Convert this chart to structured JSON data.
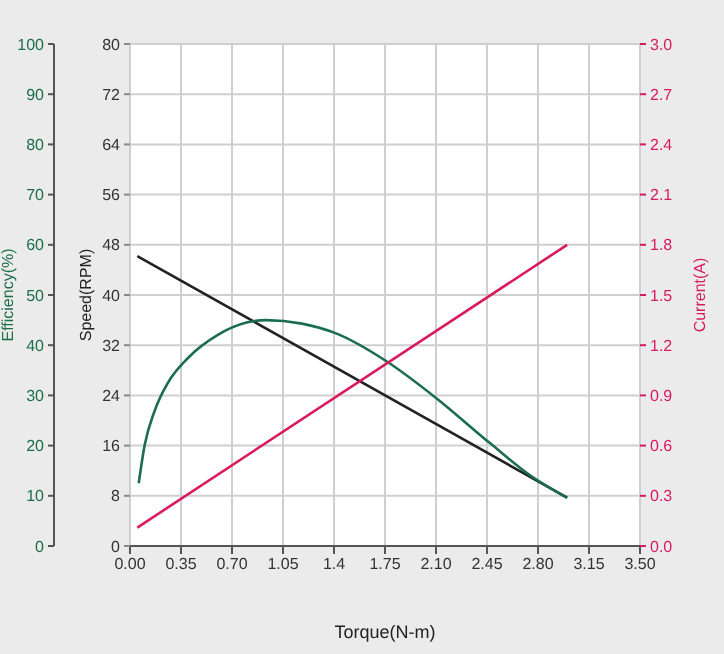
{
  "chart_data": {
    "type": "line",
    "xlabel": "Torque(N-m)",
    "ylabel": "Speed(RPM)",
    "y2label": "Current(A)",
    "y3label": "Efficiency(%)",
    "xlim": [
      0,
      3.5
    ],
    "xticks": [
      {
        "value": 0,
        "label": "0.00"
      },
      0.35,
      {
        "value": 0.7,
        "label": "0.70"
      },
      1.05,
      1.4,
      1.75,
      {
        "value": 2.1,
        "label": "2.10"
      },
      2.45,
      {
        "value": 2.8,
        "label": "2.80"
      },
      3.15,
      {
        "value": 3.5,
        "label": "3.50"
      }
    ],
    "ylim": [
      0,
      80
    ],
    "yticks": [
      0,
      8,
      16,
      24,
      32,
      40,
      48,
      56,
      64,
      72,
      80
    ],
    "y3lim": [
      0,
      100
    ],
    "y3ticks": [
      0,
      10,
      20,
      30,
      40,
      50,
      60,
      70,
      80,
      90,
      100
    ],
    "y2lim": [
      0,
      3
    ],
    "y2ticks": [
      {
        "value": 0,
        "label": "0.0"
      },
      0.3,
      0.6,
      0.9,
      1.2,
      1.5,
      1.8,
      2.1,
      2.4,
      2.7,
      {
        "value": 3,
        "label": "3.0"
      }
    ],
    "grid": true,
    "series": [
      {
        "axis": "y",
        "color": "#222222",
        "x": [
          0.05,
          3.0
        ],
        "values": [
          46.2,
          7.7
        ]
      },
      {
        "axis": "y3",
        "color": "#1b6e4c",
        "x": [
          0.06,
          0.1,
          0.17,
          0.26,
          0.4,
          0.6,
          0.8,
          0.93,
          1.18,
          1.41,
          1.76,
          2.1,
          2.47,
          2.75,
          3.0
        ],
        "values": [
          12.5,
          20,
          27,
          32.5,
          37.5,
          42,
          44.5,
          45,
          44.3,
          42.4,
          36.8,
          29.5,
          20.5,
          14,
          9.6
        ]
      },
      {
        "axis": "y2",
        "color": "#d81b60",
        "x": [
          0.05,
          3.0
        ],
        "values": [
          0.11,
          1.8
        ]
      }
    ]
  }
}
